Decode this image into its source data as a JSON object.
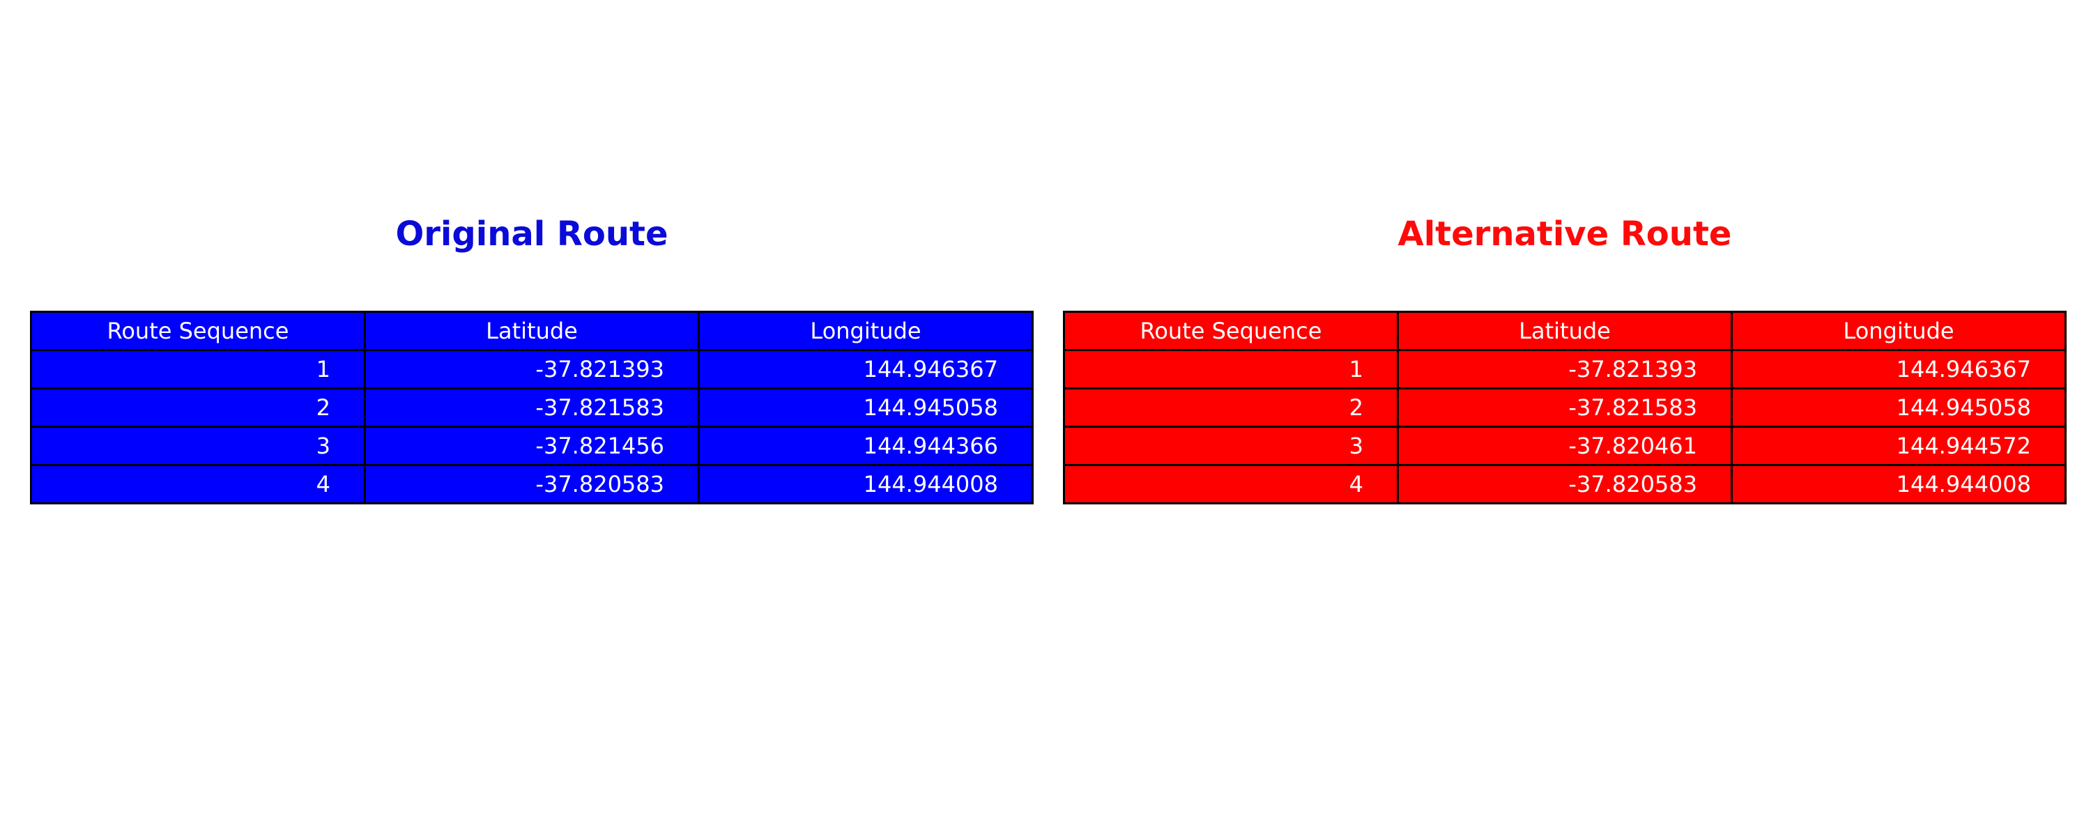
{
  "colors": {
    "original": "#0000ff",
    "alternative": "#ff0000",
    "original_title": "#0a0ad9",
    "alternative_title": "#ff0a0a",
    "cell_text": "#ffffff",
    "border": "#000000"
  },
  "chart_data": [
    {
      "type": "table",
      "title": "Original Route",
      "columns": [
        "Route Sequence",
        "Latitude",
        "Longitude"
      ],
      "rows": [
        [
          "1",
          "-37.821393",
          "144.946367"
        ],
        [
          "2",
          "-37.821583",
          "144.945058"
        ],
        [
          "3",
          "-37.821456",
          "144.944366"
        ],
        [
          "4",
          "-37.820583",
          "144.944008"
        ]
      ]
    },
    {
      "type": "table",
      "title": "Alternative Route",
      "columns": [
        "Route Sequence",
        "Latitude",
        "Longitude"
      ],
      "rows": [
        [
          "1",
          "-37.821393",
          "144.946367"
        ],
        [
          "2",
          "-37.821583",
          "144.945058"
        ],
        [
          "3",
          "-37.820461",
          "144.944572"
        ],
        [
          "4",
          "-37.820583",
          "144.944008"
        ]
      ]
    }
  ]
}
